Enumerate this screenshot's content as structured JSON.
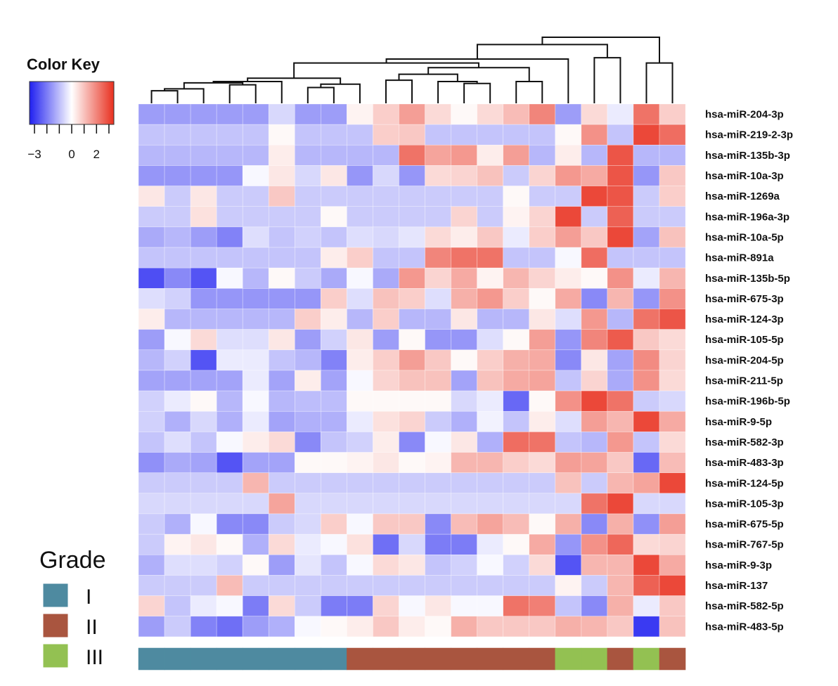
{
  "chart_data": {
    "type": "heatmap",
    "color_key": {
      "title": "Color Key",
      "range": [
        -3.4,
        3.4
      ],
      "ticks": [
        -3,
        -2,
        -1,
        0,
        1,
        2,
        3
      ],
      "tick_labels": [
        {
          "value": -3,
          "label": "−3"
        },
        {
          "value": 0,
          "label": "0"
        },
        {
          "value": 2,
          "label": "2"
        }
      ],
      "low_color": "#2020f0",
      "mid_color": "#ffffff",
      "high_color": "#e8301f"
    },
    "rows": [
      "hsa-miR-204-3p",
      "hsa-miR-219-2-3p",
      "hsa-miR-135b-3p",
      "hsa-miR-10a-3p",
      "hsa-miR-1269a",
      "hsa-miR-196a-3p",
      "hsa-miR-10a-5p",
      "hsa-miR-891a",
      "hsa-miR-135b-5p",
      "hsa-miR-675-3p",
      "hsa-miR-124-3p",
      "hsa-miR-105-5p",
      "hsa-miR-204-5p",
      "hsa-miR-211-5p",
      "hsa-miR-196b-5p",
      "hsa-miR-9-5p",
      "hsa-miR-582-3p",
      "hsa-miR-483-3p",
      "hsa-miR-124-5p",
      "hsa-miR-105-3p",
      "hsa-miR-675-5p",
      "hsa-miR-767-5p",
      "hsa-miR-9-3p",
      "hsa-miR-137",
      "hsa-miR-582-5p",
      "hsa-miR-483-5p"
    ],
    "column_grades": [
      "I",
      "I",
      "I",
      "I",
      "I",
      "I",
      "I",
      "I",
      "II",
      "II",
      "II",
      "II",
      "II",
      "II",
      "II",
      "II",
      "III",
      "III",
      "II",
      "III",
      "II"
    ],
    "values": [
      [
        -1.5,
        -1.5,
        -1.5,
        -1.5,
        -1.5,
        -0.6,
        -1.5,
        -1.5,
        0.2,
        0.8,
        1.6,
        0.6,
        0.1,
        0.6,
        1.1,
        2.0,
        -1.5,
        0.6,
        -0.3,
        2.3,
        0.8
      ],
      [
        -0.9,
        -0.9,
        -0.9,
        -0.9,
        -0.9,
        0.1,
        -0.9,
        -0.9,
        -0.9,
        0.8,
        0.9,
        -0.9,
        -0.9,
        -0.9,
        -0.9,
        -0.9,
        0.1,
        1.8,
        -0.9,
        3.0,
        2.4
      ],
      [
        -1.1,
        -1.1,
        -1.1,
        -1.1,
        -1.1,
        0.3,
        -1.1,
        -1.1,
        -1.1,
        -1.1,
        2.3,
        1.5,
        1.7,
        0.3,
        1.6,
        -1.1,
        0.3,
        -1.1,
        2.8,
        -1.1,
        -1.1
      ],
      [
        -1.6,
        -1.6,
        -1.6,
        -1.6,
        -0.1,
        0.4,
        -0.6,
        0.4,
        -1.6,
        -0.6,
        -1.6,
        0.6,
        0.7,
        1.0,
        -0.8,
        0.7,
        1.7,
        1.4,
        2.8,
        -1.6,
        0.9
      ],
      [
        0.4,
        -0.8,
        0.4,
        -0.8,
        -0.8,
        0.9,
        -0.8,
        -0.8,
        -0.8,
        -0.8,
        -0.8,
        -0.8,
        -0.8,
        -0.8,
        0.1,
        -0.8,
        -0.8,
        3.0,
        2.8,
        -0.8,
        0.8
      ],
      [
        -0.8,
        -0.8,
        0.5,
        -0.8,
        -0.8,
        -0.8,
        -0.8,
        0.1,
        -0.8,
        -0.8,
        -0.8,
        -0.8,
        0.7,
        -0.8,
        0.2,
        0.7,
        3.0,
        -0.8,
        2.6,
        -0.8,
        -0.8
      ],
      [
        -1.3,
        -1.1,
        -1.5,
        -1.9,
        -0.5,
        -0.9,
        -0.7,
        -0.9,
        -0.5,
        -0.6,
        -0.4,
        0.6,
        0.3,
        0.9,
        -0.3,
        0.8,
        1.6,
        0.9,
        3.0,
        -1.4,
        1.0
      ],
      [
        -0.9,
        -0.9,
        -0.9,
        -0.9,
        -0.9,
        -0.9,
        -0.9,
        0.3,
        0.8,
        -0.9,
        -0.9,
        2.0,
        2.3,
        2.3,
        -0.9,
        -0.9,
        -0.1,
        2.4,
        -0.9,
        -0.9,
        -0.9
      ],
      [
        -2.7,
        -1.8,
        -2.6,
        -0.1,
        -1.1,
        0.1,
        -0.8,
        -1.3,
        -0.1,
        -1.3,
        1.7,
        0.7,
        1.4,
        0.2,
        1.2,
        0.7,
        0.3,
        0.1,
        1.8,
        -0.3,
        1.2
      ],
      [
        -0.5,
        -0.7,
        -1.6,
        -1.6,
        -1.6,
        -1.6,
        -1.6,
        0.8,
        -0.5,
        1.0,
        0.8,
        -0.5,
        1.3,
        1.7,
        0.8,
        0.1,
        1.4,
        -1.8,
        1.2,
        -1.6,
        1.8
      ],
      [
        0.3,
        -1.1,
        -1.1,
        -1.1,
        -1.1,
        -1.1,
        0.8,
        0.3,
        -1.1,
        0.8,
        -1.1,
        -1.1,
        0.4,
        -1.1,
        -1.1,
        0.4,
        -0.5,
        1.7,
        -1.1,
        2.3,
        2.8
      ],
      [
        -1.5,
        -0.1,
        0.6,
        -0.5,
        -0.5,
        0.4,
        -1.5,
        -0.7,
        0.4,
        -1.5,
        0.1,
        -1.6,
        -1.6,
        -0.5,
        0.1,
        1.6,
        -1.6,
        2.0,
        2.7,
        0.9,
        0.6
      ],
      [
        -1.1,
        -0.7,
        -2.6,
        -0.3,
        -0.3,
        -0.9,
        -1.1,
        -1.9,
        0.3,
        0.8,
        1.6,
        0.9,
        0.1,
        0.8,
        1.3,
        1.4,
        -1.8,
        0.4,
        -1.4,
        1.9,
        0.7
      ],
      [
        -1.4,
        -1.4,
        -1.4,
        -1.4,
        -0.3,
        -1.4,
        0.3,
        -1.4,
        -0.1,
        0.7,
        1.0,
        1.0,
        -1.4,
        1.0,
        1.4,
        1.5,
        -0.9,
        0.7,
        -1.3,
        1.8,
        0.6
      ],
      [
        -0.7,
        -0.3,
        0.1,
        -1.1,
        -0.1,
        -1.1,
        -1.0,
        -1.0,
        0.1,
        0.1,
        0.1,
        0.1,
        -0.6,
        -0.3,
        -2.3,
        0.1,
        1.8,
        3.0,
        2.3,
        -0.8,
        -0.6
      ],
      [
        -0.7,
        -1.2,
        -0.6,
        -1.2,
        -0.3,
        -1.4,
        -1.2,
        -1.2,
        -0.3,
        0.5,
        0.7,
        -0.8,
        -1.2,
        -0.2,
        -0.9,
        0.3,
        -0.5,
        1.6,
        1.2,
        3.0,
        1.4
      ],
      [
        -0.9,
        -0.5,
        -0.9,
        -0.1,
        0.3,
        0.6,
        -1.8,
        -0.9,
        -0.7,
        0.3,
        -1.8,
        -0.1,
        0.4,
        -1.2,
        2.4,
        2.3,
        -0.9,
        -1.1,
        1.7,
        -0.9,
        0.6
      ],
      [
        -1.7,
        -1.3,
        -1.4,
        -2.6,
        -1.4,
        -1.4,
        0.1,
        0.1,
        0.2,
        0.4,
        0.1,
        0.2,
        1.2,
        1.2,
        0.8,
        0.6,
        1.6,
        1.5,
        0.9,
        -2.3,
        1.1
      ],
      [
        -0.8,
        -0.8,
        -0.8,
        -0.8,
        1.2,
        -0.8,
        -0.8,
        -0.8,
        -0.8,
        -0.8,
        -0.8,
        -0.8,
        -0.8,
        -0.8,
        -0.8,
        -0.8,
        1.0,
        -0.8,
        1.2,
        1.5,
        3.0
      ],
      [
        -0.6,
        -0.6,
        -0.6,
        -0.6,
        -0.6,
        1.5,
        -0.6,
        -0.6,
        -0.6,
        -0.6,
        -0.6,
        -0.6,
        -0.6,
        -0.6,
        -0.6,
        -0.6,
        -0.6,
        2.3,
        3.0,
        -0.6,
        -0.6
      ],
      [
        -0.8,
        -1.2,
        -0.1,
        -1.8,
        -1.8,
        -0.8,
        -0.6,
        0.8,
        -0.1,
        0.9,
        0.9,
        -1.8,
        1.1,
        1.5,
        1.1,
        0.1,
        1.3,
        -1.8,
        1.3,
        -1.7,
        1.6
      ],
      [
        -0.8,
        0.2,
        0.4,
        0.1,
        -1.2,
        0.6,
        -0.3,
        -0.1,
        0.5,
        -2.2,
        -0.6,
        -2.0,
        -2.0,
        -0.3,
        0.1,
        1.4,
        -1.6,
        1.8,
        2.5,
        0.6,
        0.7
      ],
      [
        -1.2,
        -0.5,
        -0.5,
        -0.7,
        0.1,
        -1.5,
        -0.4,
        -0.9,
        -0.1,
        0.6,
        0.4,
        -0.9,
        -0.7,
        -0.1,
        -0.7,
        0.6,
        -2.6,
        1.2,
        1.2,
        3.0,
        1.4
      ],
      [
        -0.8,
        -0.8,
        -0.8,
        1.1,
        -0.8,
        -0.8,
        -0.8,
        -0.8,
        -0.8,
        -0.8,
        -0.8,
        -0.8,
        -0.8,
        -0.8,
        -0.8,
        -0.8,
        0.2,
        -0.8,
        1.2,
        2.6,
        3.0
      ],
      [
        0.7,
        -0.9,
        -0.3,
        -0.1,
        -2.0,
        0.6,
        -0.8,
        -2.0,
        -2.0,
        0.7,
        -0.1,
        0.4,
        -0.1,
        -0.1,
        2.3,
        2.1,
        -0.9,
        -1.8,
        1.3,
        -0.3,
        0.9
      ],
      [
        -1.5,
        -0.8,
        -1.9,
        -2.2,
        -1.5,
        -1.2,
        -0.1,
        0.1,
        0.3,
        0.9,
        0.3,
        0.1,
        1.3,
        0.9,
        0.9,
        0.9,
        1.3,
        1.2,
        0.9,
        -3.0,
        1.0
      ]
    ],
    "column_dendrogram": [
      [
        "c0",
        "c1",
        0.19
      ],
      [
        "m0",
        "c2",
        0.22
      ],
      [
        "c3",
        "c4",
        0.28
      ],
      [
        "m1",
        "m2",
        0.31
      ],
      [
        "m3",
        "c5",
        0.33
      ],
      [
        "c6",
        "c7",
        0.24
      ],
      [
        "m5",
        "c8",
        0.29
      ],
      [
        "m4",
        "m6",
        0.38
      ],
      [
        "c12",
        "c13",
        0.3
      ],
      [
        "c11",
        "m8",
        0.33
      ],
      [
        "c9",
        "c10",
        0.35
      ],
      [
        "m10",
        "m9",
        0.44
      ],
      [
        "c14",
        "c15",
        0.33
      ],
      [
        "m11",
        "m12",
        0.54
      ],
      [
        "m7",
        "m13",
        0.61
      ],
      [
        "m14",
        "c16",
        0.67
      ],
      [
        "c17",
        "c18",
        0.69
      ],
      [
        "m15",
        "m16",
        0.89
      ],
      [
        "c19",
        "c20",
        0.61
      ],
      [
        "m17",
        "m18",
        1.0
      ]
    ],
    "legend": {
      "title": "Grade",
      "items": [
        {
          "label": "I",
          "color": "#4e8aa0"
        },
        {
          "label": "II",
          "color": "#a9553f"
        },
        {
          "label": "III",
          "color": "#93c152"
        }
      ]
    }
  }
}
